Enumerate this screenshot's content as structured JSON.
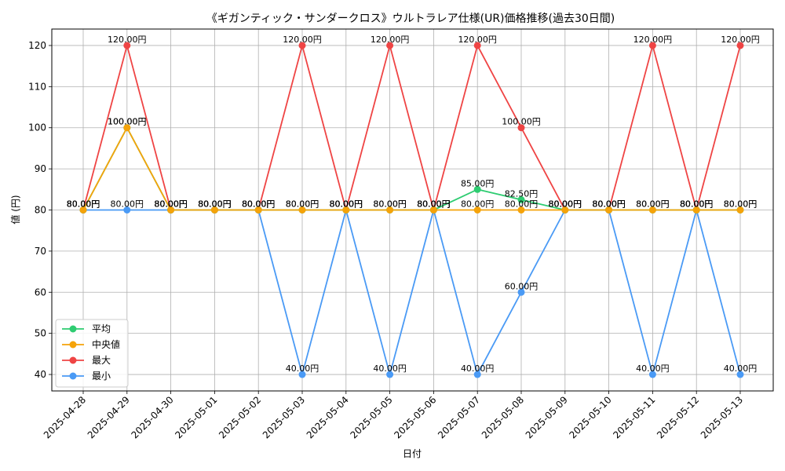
{
  "chart_data": {
    "type": "line",
    "title": "《ギガンティック・サンダークロス》ウルトラレア仕様(UR)価格推移(過去30日間)",
    "xlabel": "日付",
    "ylabel": "値 (円)",
    "ylim": [
      36,
      124
    ],
    "yticks": [
      40,
      50,
      60,
      70,
      80,
      90,
      100,
      110,
      120
    ],
    "grid": true,
    "legend_position": "bottom-left",
    "label_suffix": "円",
    "categories": [
      "2025-04-28",
      "2025-04-29",
      "2025-04-30",
      "2025-05-01",
      "2025-05-02",
      "2025-05-03",
      "2025-05-04",
      "2025-05-05",
      "2025-05-06",
      "2025-05-07",
      "2025-05-08",
      "2025-05-09",
      "2025-05-10",
      "2025-05-11",
      "2025-05-12",
      "2025-05-13"
    ],
    "series": [
      {
        "name": "最大",
        "color": "#ef4444",
        "values": [
          80,
          120,
          80,
          80,
          80,
          120,
          80,
          120,
          80,
          120,
          100,
          80,
          80,
          120,
          80,
          120
        ]
      },
      {
        "name": "最小",
        "color": "#4a9af5",
        "values": [
          80,
          80,
          80,
          80,
          80,
          40,
          80,
          40,
          80,
          40,
          60,
          80,
          80,
          40,
          80,
          40
        ]
      },
      {
        "name": "平均",
        "color": "#2ecc71",
        "values": [
          80,
          100,
          80,
          80,
          80,
          80,
          80,
          80,
          80,
          85,
          82.5,
          80,
          80,
          80,
          80,
          80
        ]
      },
      {
        "name": "中央値",
        "color": "#f5a30a",
        "values": [
          80,
          100,
          80,
          80,
          80,
          80,
          80,
          80,
          80,
          80,
          80,
          80,
          80,
          80,
          80,
          80
        ]
      }
    ],
    "legend_order": [
      "平均",
      "中央値",
      "最大",
      "最小"
    ]
  }
}
